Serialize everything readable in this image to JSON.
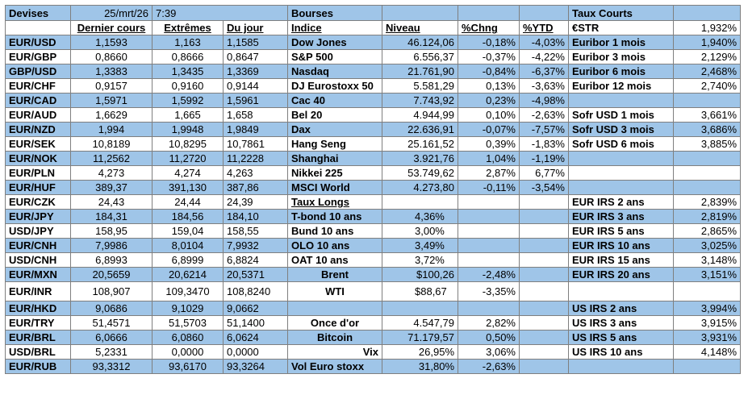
{
  "header": {
    "devises": "Devises",
    "date": "25/mrt/26",
    "time": "7:39",
    "bourses": "Bourses",
    "taux_courts": "Taux Courts"
  },
  "subheader": {
    "dernier": "Dernier cours",
    "extremes": "Extrêmes",
    "dujour": "Du jour",
    "indice": "Indice",
    "niveau": "Niveau",
    "chng": "%Chng",
    "ytd": "%YTD",
    "rate_name": "€STR",
    "rate_value": "1,932%"
  },
  "rows": [
    {
      "pair": "EUR/USD",
      "last": "1,1593",
      "high": "1,163",
      "low": "1,1585",
      "idx": "Dow Jones",
      "lvl": "46.124,06",
      "chg": "-0,18%",
      "ytd": "-4,03%",
      "rname": "Euribor 1 mois",
      "rval": "1,940%"
    },
    {
      "pair": "EUR/GBP",
      "last": "0,8660",
      "high": "0,8666",
      "low": "0,8647",
      "idx": "S&P 500",
      "lvl": "6.556,37",
      "chg": "-0,37%",
      "ytd": "-4,22%",
      "rname": "Euribor 3 mois",
      "rval": "2,129%"
    },
    {
      "pair": "GBP/USD",
      "last": "1,3383",
      "high": "1,3435",
      "low": "1,3369",
      "idx": "Nasdaq",
      "lvl": "21.761,90",
      "chg": "-0,84%",
      "ytd": "-6,37%",
      "rname": "Euribor 6 mois",
      "rval": "2,468%"
    },
    {
      "pair": "EUR/CHF",
      "last": "0,9157",
      "high": "0,9160",
      "low": "0,9144",
      "idx": "DJ Eurostoxx 50",
      "lvl": "5.581,29",
      "chg": "0,13%",
      "ytd": "-3,63%",
      "rname": "Euribor 12 mois",
      "rval": "2,740%"
    },
    {
      "pair": "EUR/CAD",
      "last": "1,5971",
      "high": "1,5992",
      "low": "1,5961",
      "idx": "Cac 40",
      "lvl": "7.743,92",
      "chg": "0,23%",
      "ytd": "-4,98%",
      "rname": "",
      "rval": ""
    },
    {
      "pair": "EUR/AUD",
      "last": "1,6629",
      "high": "1,665",
      "low": "1,658",
      "idx": "Bel 20",
      "lvl": "4.944,99",
      "chg": "0,10%",
      "ytd": "-2,63%",
      "rname": "Sofr USD 1 mois",
      "rval": "3,661%"
    },
    {
      "pair": "EUR/NZD",
      "last": "1,994",
      "high": "1,9948",
      "low": "1,9849",
      "idx": "Dax",
      "lvl": "22.636,91",
      "chg": "-0,07%",
      "ytd": "-7,57%",
      "rname": "Sofr USD 3 mois",
      "rval": "3,686%"
    },
    {
      "pair": "EUR/SEK",
      "last": "10,8189",
      "high": "10,8295",
      "low": "10,7861",
      "idx": "Hang Seng",
      "lvl": "25.161,52",
      "chg": "0,39%",
      "ytd": "-1,83%",
      "rname": "Sofr USD 6 mois",
      "rval": "3,885%"
    },
    {
      "pair": "EUR/NOK",
      "last": "11,2562",
      "high": "11,2720",
      "low": "11,2228",
      "idx": "Shanghai",
      "lvl": "3.921,76",
      "chg": "1,04%",
      "ytd": "-1,19%",
      "rname": "",
      "rval": ""
    },
    {
      "pair": "EUR/PLN",
      "last": "4,273",
      "high": "4,274",
      "low": "4,263",
      "idx": "Nikkei 225",
      "lvl": "53.749,62",
      "chg": "2,87%",
      "ytd": "6,77%",
      "rname": "",
      "rval": ""
    },
    {
      "pair": "EUR/HUF",
      "last": "389,37",
      "high": "391,130",
      "low": "387,86",
      "idx": "MSCI World",
      "lvl": "4.273,80",
      "chg": "-0,11%",
      "ytd": "-3,54%",
      "rname": "",
      "rval": ""
    },
    {
      "pair": "EUR/CZK",
      "last": "24,43",
      "high": "24,44",
      "low": "24,39",
      "idx": "Taux Longs",
      "lvl": "",
      "chg": "",
      "ytd": "",
      "rname": "EUR IRS 2 ans",
      "rval": "2,839%"
    },
    {
      "pair": "EUR/JPY",
      "last": "184,31",
      "high": "184,56",
      "low": "184,10",
      "idx": "T-bond 10 ans",
      "lvl": "4,36%",
      "chg": "",
      "ytd": "",
      "rname": "EUR IRS 3 ans",
      "rval": "2,819%"
    },
    {
      "pair": "USD/JPY",
      "last": "158,95",
      "high": "159,04",
      "low": "158,55",
      "idx": "Bund 10 ans",
      "lvl": "3,00%",
      "chg": "",
      "ytd": "",
      "rname": "EUR IRS 5 ans",
      "rval": "2,865%"
    },
    {
      "pair": "EUR/CNH",
      "last": "7,9986",
      "high": "8,0104",
      "low": "7,9932",
      "idx": "OLO 10 ans",
      "lvl": "3,49%",
      "chg": "",
      "ytd": "",
      "rname": "EUR IRS 10 ans",
      "rval": "3,025%"
    },
    {
      "pair": "USD/CNH",
      "last": "6,8993",
      "high": "6,8999",
      "low": "6,8824",
      "idx": "OAT 10 ans",
      "lvl": "3,72%",
      "chg": "",
      "ytd": "",
      "rname": "EUR IRS 15 ans",
      "rval": "3,148%"
    },
    {
      "pair": "EUR/MXN",
      "last": "20,5659",
      "high": "20,6214",
      "low": "20,5371",
      "idx": "Brent",
      "lvl": "$100,26",
      "chg": "-2,48%",
      "ytd": "",
      "rname": "EUR IRS 20 ans",
      "rval": "3,151%"
    },
    {
      "pair": "EUR/INR",
      "last": "108,907",
      "high": "109,3470",
      "low": "108,8240",
      "idx": "WTI",
      "lvl": "$88,67",
      "chg": "-3,35%",
      "ytd": "",
      "rname": "",
      "rval": ""
    },
    {
      "pair": "EUR/HKD",
      "last": "9,0686",
      "high": "9,1029",
      "low": "9,0662",
      "idx": "",
      "lvl": "",
      "chg": "",
      "ytd": "",
      "rname": "US IRS 2 ans",
      "rval": "3,994%"
    },
    {
      "pair": "EUR/TRY",
      "last": "51,4571",
      "high": "51,5703",
      "low": "51,1400",
      "idx": "Once d'or",
      "lvl": "4.547,79",
      "chg": "2,82%",
      "ytd": "",
      "rname": "US IRS 3 ans",
      "rval": "3,915%"
    },
    {
      "pair": "EUR/BRL",
      "last": "6,0666",
      "high": "6,0860",
      "low": "6,0624",
      "idx": "Bitcoin",
      "lvl": "71.179,57",
      "chg": "0,50%",
      "ytd": "",
      "rname": "US IRS 5 ans",
      "rval": "3,931%"
    },
    {
      "pair": "USD/BRL",
      "last": "5,2331",
      "high": "0,0000",
      "low": "0,0000",
      "idx": "Vix",
      "lvl": "26,95%",
      "chg": "3,06%",
      "ytd": "",
      "rname": "US IRS 10 ans",
      "rval": "4,148%"
    },
    {
      "pair": "EUR/RUB",
      "last": "93,3312",
      "high": "93,6170",
      "low": "93,3264",
      "idx": "Vol Euro stoxx",
      "lvl": "31,80%",
      "chg": "-2,63%",
      "ytd": "",
      "rname": "",
      "rval": ""
    }
  ]
}
